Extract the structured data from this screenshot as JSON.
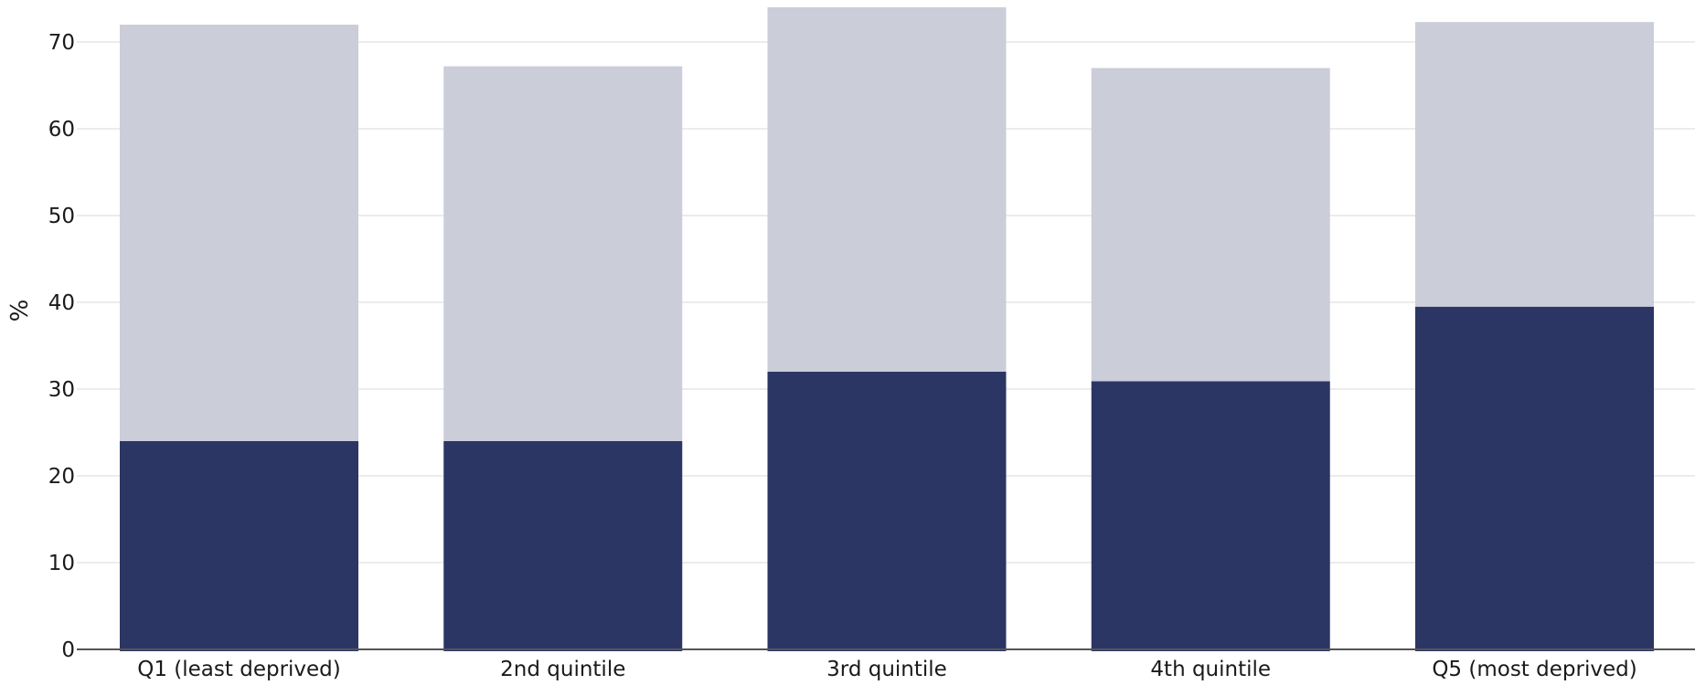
{
  "chart_data": {
    "type": "bar",
    "stacked": true,
    "categories": [
      "Q1 (least deprived)",
      "2nd quintile",
      "3rd quintile",
      "4th quintile",
      "Q5 (most deprived)"
    ],
    "series": [
      {
        "values": [
          24.0,
          24.0,
          32.0,
          30.9,
          39.5
        ],
        "color": "#2b3664"
      },
      {
        "values": [
          48.0,
          43.2,
          42.0,
          36.1,
          32.8
        ],
        "color": "#cbcdd9"
      }
    ],
    "ylabel": "%",
    "ylim": [
      0,
      74
    ],
    "yticks": [
      0,
      10,
      20,
      30,
      40,
      50,
      60,
      70
    ],
    "grid": true,
    "gridColor": "#e6e6e6",
    "axisColor": "#555555"
  }
}
